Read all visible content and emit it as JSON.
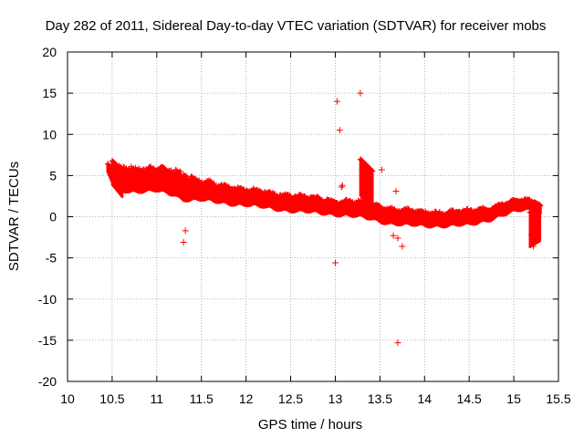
{
  "chart_data": {
    "type": "scatter",
    "title": "Day 282 of 2011, Sidereal Day-to-day VTEC variation (SDTVAR) for receiver mobs",
    "xlabel": "GPS time / hours",
    "ylabel": "SDTVAR / TECUs",
    "xlim": [
      10,
      15.5
    ],
    "ylim": [
      -20,
      20
    ],
    "xticks": [
      10,
      10.5,
      11,
      11.5,
      12,
      12.5,
      13,
      13.5,
      14,
      14.5,
      15,
      15.5
    ],
    "yticks": [
      -20,
      -15,
      -10,
      -5,
      0,
      5,
      10,
      15,
      20
    ],
    "xtick_labels": [
      "10",
      "10.5",
      "11",
      "11.5",
      "12",
      "12.5",
      "13",
      "13.5",
      "14",
      "14.5",
      "15",
      "15.5"
    ],
    "ytick_labels": [
      "-20",
      "-15",
      "-10",
      "-5",
      "0",
      "5",
      "10",
      "15",
      "20"
    ],
    "grid": true,
    "marker": "+",
    "color": "#ff0000",
    "band_center": [
      [
        10.45,
        5.8
      ],
      [
        10.5,
        5.0
      ],
      [
        10.6,
        4.5
      ],
      [
        10.8,
        4.3
      ],
      [
        11.0,
        4.3
      ],
      [
        11.2,
        4.0
      ],
      [
        11.3,
        3.5
      ],
      [
        11.5,
        3.0
      ],
      [
        11.8,
        2.5
      ],
      [
        12.0,
        2.2
      ],
      [
        12.3,
        1.8
      ],
      [
        12.6,
        1.4
      ],
      [
        12.8,
        1.2
      ],
      [
        13.0,
        1.0
      ],
      [
        13.2,
        0.8
      ],
      [
        13.4,
        0.5
      ],
      [
        13.6,
        0.0
      ],
      [
        13.8,
        -0.3
      ],
      [
        14.0,
        -0.4
      ],
      [
        14.3,
        -0.4
      ],
      [
        14.5,
        -0.3
      ],
      [
        14.7,
        0.2
      ],
      [
        14.9,
        0.8
      ],
      [
        15.1,
        1.3
      ],
      [
        15.25,
        1.3
      ],
      [
        15.3,
        0.8
      ]
    ],
    "band_halfwidth": [
      [
        10.45,
        0.5
      ],
      [
        10.6,
        1.4
      ],
      [
        11.0,
        1.3
      ],
      [
        11.3,
        1.5
      ],
      [
        11.5,
        1.1
      ],
      [
        12.0,
        0.9
      ],
      [
        12.5,
        0.9
      ],
      [
        13.0,
        0.8
      ],
      [
        13.5,
        0.9
      ],
      [
        14.0,
        0.8
      ],
      [
        14.5,
        0.8
      ],
      [
        15.0,
        0.6
      ],
      [
        15.3,
        0.5
      ]
    ],
    "spike_segments": [
      {
        "x": [
          13.28,
          13.42
        ],
        "y_top": [
          7.0,
          5.5
        ],
        "y_bottom": [
          2.5,
          0.5
        ]
      },
      {
        "x": [
          15.18,
          15.3
        ],
        "y_top": [
          0.5,
          1.5
        ],
        "y_bottom": [
          -3.8,
          -3.0
        ]
      },
      {
        "x": [
          10.5,
          10.62
        ],
        "y_top": [
          6.8,
          5.5
        ],
        "y_bottom": [
          3.8,
          2.2
        ]
      }
    ],
    "outliers": [
      {
        "x": 13.02,
        "y": 14.0
      },
      {
        "x": 13.05,
        "y": 10.5
      },
      {
        "x": 13.28,
        "y": 15.0
      },
      {
        "x": 13.08,
        "y": 3.8
      },
      {
        "x": 13.07,
        "y": 3.6
      },
      {
        "x": 13.52,
        "y": 5.7
      },
      {
        "x": 13.68,
        "y": 3.1
      },
      {
        "x": 13.0,
        "y": -5.6
      },
      {
        "x": 13.7,
        "y": -15.3
      },
      {
        "x": 13.75,
        "y": -3.6
      },
      {
        "x": 11.32,
        "y": -1.7
      },
      {
        "x": 11.3,
        "y": -3.1
      },
      {
        "x": 13.65,
        "y": -2.3
      },
      {
        "x": 13.7,
        "y": -2.6
      },
      {
        "x": 15.2,
        "y": -2.2
      },
      {
        "x": 15.22,
        "y": -3.6
      }
    ]
  }
}
